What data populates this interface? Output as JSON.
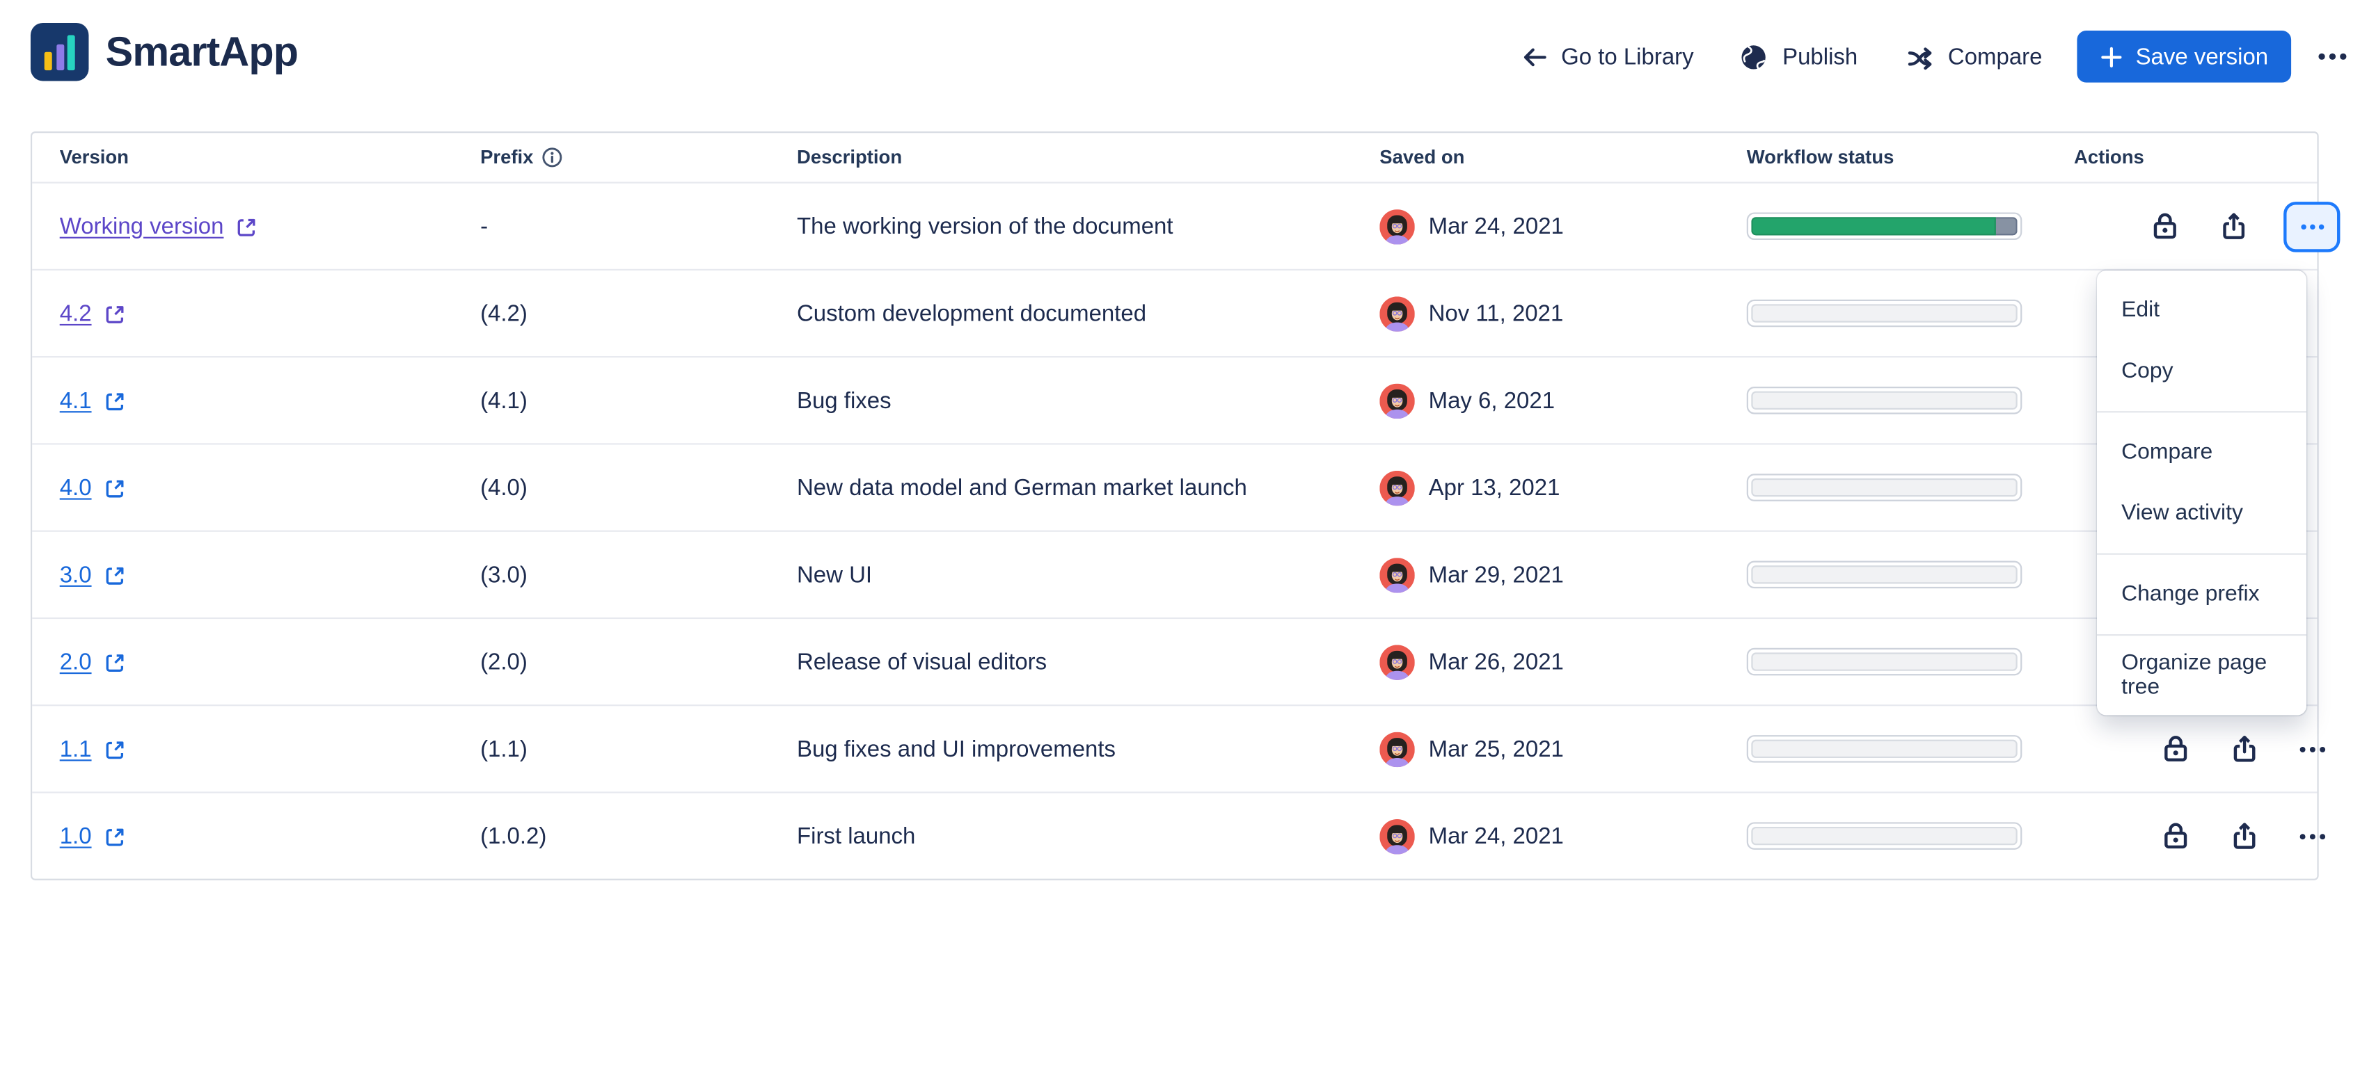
{
  "header": {
    "app_name": "SmartApp",
    "nav": {
      "go_to_library": "Go to Library",
      "publish": "Publish",
      "compare": "Compare",
      "save_version": "Save version"
    }
  },
  "table": {
    "columns": [
      "Version",
      "Prefix",
      "Description",
      "Saved on",
      "Workflow status",
      "Actions"
    ],
    "rows": [
      {
        "version": "Working version",
        "prefix": "-",
        "description": "The working version of the document",
        "saved_on": "Mar 24, 2021",
        "workflow": {
          "state": "in-progress",
          "green_percent": 92,
          "gray_percent": 8
        }
      },
      {
        "version": "4.2",
        "prefix": "(4.2)",
        "description": "Custom development documented",
        "saved_on": "Nov 11, 2021",
        "workflow": {
          "state": "empty"
        }
      },
      {
        "version": "4.1",
        "prefix": "(4.1)",
        "description": "Bug fixes",
        "saved_on": "May 6, 2021",
        "workflow": {
          "state": "empty"
        }
      },
      {
        "version": "4.0",
        "prefix": "(4.0)",
        "description": "New data model and German market launch",
        "saved_on": "Apr 13, 2021",
        "workflow": {
          "state": "empty"
        }
      },
      {
        "version": "3.0",
        "prefix": "(3.0)",
        "description": "New UI",
        "saved_on": "Mar 29, 2021",
        "workflow": {
          "state": "empty"
        }
      },
      {
        "version": "2.0",
        "prefix": "(2.0)",
        "description": "Release of visual editors",
        "saved_on": "Mar 26, 2021",
        "workflow": {
          "state": "empty"
        }
      },
      {
        "version": "1.1",
        "prefix": "(1.1)",
        "description": "Bug fixes and UI improvements",
        "saved_on": "Mar 25, 2021",
        "workflow": {
          "state": "empty"
        }
      },
      {
        "version": "1.0",
        "prefix": "(1.0.2)",
        "description": "First launch",
        "saved_on": "Mar 24, 2021",
        "workflow": {
          "state": "empty"
        }
      }
    ]
  },
  "menu": {
    "groups": [
      {
        "items": [
          "Edit",
          "Copy"
        ]
      },
      {
        "items": [
          "Compare",
          "View activity"
        ]
      },
      {
        "items": [
          "Change prefix"
        ]
      },
      {
        "items": [
          "Organize page tree"
        ]
      }
    ]
  },
  "colors": {
    "accent_blue": "#1868DB",
    "active_button_border": "#1D7AFC",
    "active_button_bg": "#E9F2FF",
    "visited_link_purple": "#5C46C8",
    "link_blue": "#1868DB",
    "progress_green": "#22A06B",
    "progress_gray": "#8590A2",
    "text_navy": "#1D2B4E",
    "logo_navy": "#17386B"
  }
}
